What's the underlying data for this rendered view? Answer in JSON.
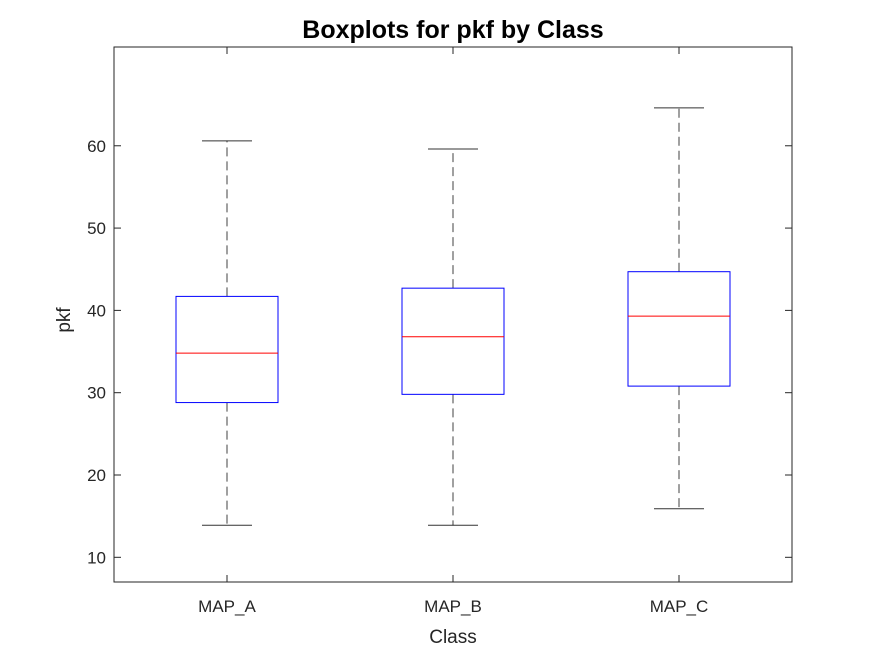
{
  "chart_data": {
    "type": "boxplot",
    "title": "Boxplots for pkf by Class",
    "xlabel": "Class",
    "ylabel": "pkf",
    "categories": [
      "MAP_A",
      "MAP_B",
      "MAP_C"
    ],
    "ylim": [
      7,
      72
    ],
    "yticks": [
      10,
      20,
      30,
      40,
      50,
      60
    ],
    "grid": false,
    "boxes": [
      {
        "category": "MAP_A",
        "whisker_low": 13.9,
        "q1": 28.8,
        "median": 34.8,
        "q3": 41.7,
        "whisker_high": 60.6
      },
      {
        "category": "MAP_B",
        "whisker_low": 13.9,
        "q1": 29.8,
        "median": 36.8,
        "q3": 42.7,
        "whisker_high": 59.6
      },
      {
        "category": "MAP_C",
        "whisker_low": 15.9,
        "q1": 30.8,
        "median": 39.3,
        "q3": 44.7,
        "whisker_high": 64.6
      }
    ],
    "colors": {
      "box": "#0000ff",
      "median": "#ff0000",
      "whisker": "#000000",
      "axes": "#262626"
    }
  }
}
